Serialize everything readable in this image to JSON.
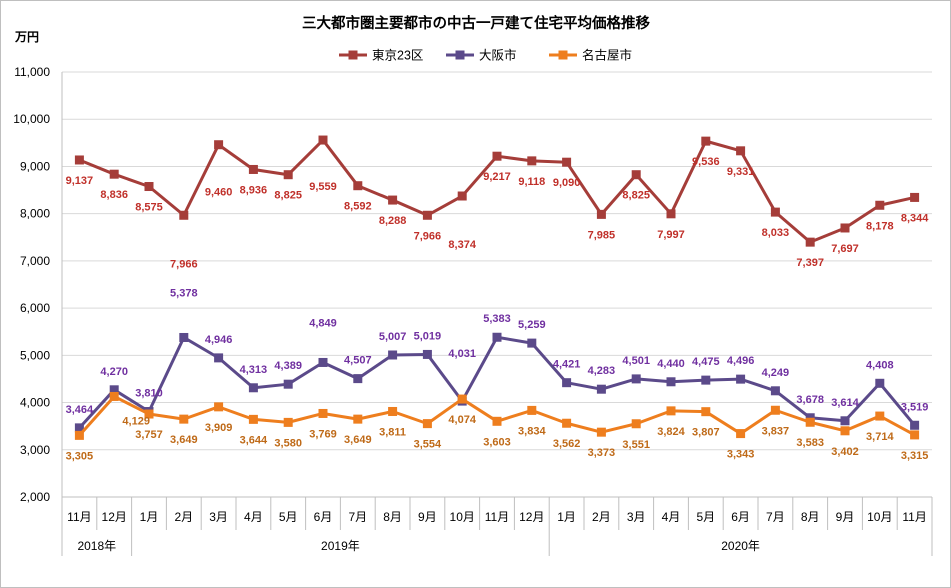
{
  "chart_data": {
    "type": "line",
    "title": "三大都市圏主要都市の中古一戸建て住宅平均価格推移",
    "ylabel": "万円",
    "xlabel": "",
    "ylim": [
      2000,
      11000
    ],
    "yticks": [
      2000,
      3000,
      4000,
      5000,
      6000,
      7000,
      8000,
      9000,
      10000,
      11000
    ],
    "grid": true,
    "legend_position": "top",
    "categories": [
      "11月",
      "12月",
      "1月",
      "2月",
      "3月",
      "4月",
      "5月",
      "6月",
      "7月",
      "8月",
      "9月",
      "10月",
      "11月",
      "12月",
      "1月",
      "2月",
      "3月",
      "4月",
      "5月",
      "6月",
      "7月",
      "8月",
      "9月",
      "10月",
      "11月"
    ],
    "groups": [
      {
        "label": "2018年",
        "count": 2
      },
      {
        "label": "2019年",
        "count": 12
      },
      {
        "label": "2020年",
        "count": 11
      }
    ],
    "series": [
      {
        "name": "東京23区",
        "color": "#A53D39",
        "label_color": "#C0302A",
        "values": [
          9137,
          8836,
          8575,
          7966,
          9460,
          8936,
          8825,
          9559,
          8592,
          8288,
          7966,
          8374,
          9217,
          9118,
          9090,
          7985,
          8825,
          7997,
          9536,
          9331,
          8033,
          7397,
          7697,
          8178,
          8344
        ]
      },
      {
        "name": "大阪市",
        "color": "#5B4A8A",
        "label_color": "#7030A0",
        "values": [
          3464,
          4270,
          3810,
          5378,
          4946,
          4313,
          4389,
          4849,
          4507,
          5007,
          5019,
          4031,
          5383,
          5259,
          4421,
          4283,
          4501,
          4440,
          4475,
          4496,
          4249,
          3678,
          3614,
          4408,
          3519
        ]
      },
      {
        "name": "名古屋市",
        "color": "#EE7E1E",
        "label_color": "#BF6A18",
        "values": [
          3305,
          4129,
          3757,
          3649,
          3909,
          3644,
          3580,
          3769,
          3649,
          3811,
          3554,
          4074,
          3603,
          3834,
          3562,
          3373,
          3551,
          3824,
          3807,
          3343,
          3837,
          3583,
          3402,
          3714,
          3315
        ]
      }
    ]
  }
}
